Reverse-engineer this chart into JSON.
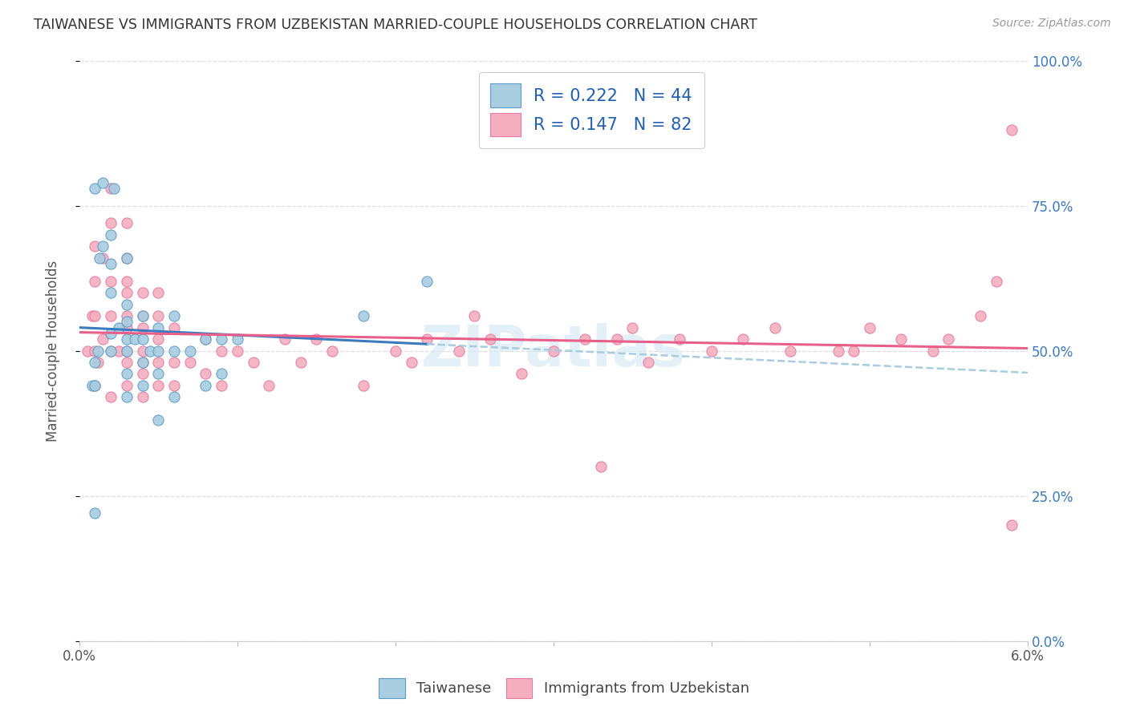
{
  "title": "TAIWANESE VS IMMIGRANTS FROM UZBEKISTAN MARRIED-COUPLE HOUSEHOLDS CORRELATION CHART",
  "source": "Source: ZipAtlas.com",
  "ylabel": "Married-couple Households",
  "x_min": 0.0,
  "x_max": 0.06,
  "y_min": 0.0,
  "y_max": 1.0,
  "x_tick_positions": [
    0.0,
    0.01,
    0.02,
    0.03,
    0.04,
    0.05,
    0.06
  ],
  "x_tick_labels": [
    "0.0%",
    "",
    "",
    "",
    "",
    "",
    "6.0%"
  ],
  "y_tick_positions": [
    0.0,
    0.25,
    0.5,
    0.75,
    1.0
  ],
  "y_tick_labels_right": [
    "0.0%",
    "25.0%",
    "50.0%",
    "75.0%",
    "100.0%"
  ],
  "legend_r1": "0.222",
  "legend_n1": "44",
  "legend_r2": "0.147",
  "legend_n2": "82",
  "color_blue_fill": "#a8cce0",
  "color_blue_edge": "#5a9ec8",
  "color_blue_line": "#3a7abf",
  "color_blue_dash": "#a8cce0",
  "color_pink_fill": "#f4aec0",
  "color_pink_edge": "#e87aa0",
  "color_pink_line": "#e8608a",
  "color_right_axis": "#3a7abf",
  "watermark_color": "#d8eaf5",
  "taiwanese_x": [
    0.0008,
    0.001,
    0.001,
    0.001,
    0.001,
    0.0012,
    0.0013,
    0.0015,
    0.0015,
    0.002,
    0.002,
    0.002,
    0.002,
    0.002,
    0.0022,
    0.0025,
    0.003,
    0.003,
    0.003,
    0.003,
    0.003,
    0.003,
    0.003,
    0.0035,
    0.004,
    0.004,
    0.004,
    0.004,
    0.0045,
    0.005,
    0.005,
    0.005,
    0.005,
    0.006,
    0.006,
    0.006,
    0.007,
    0.008,
    0.008,
    0.009,
    0.009,
    0.01,
    0.018,
    0.022
  ],
  "taiwanese_y": [
    0.44,
    0.22,
    0.44,
    0.48,
    0.78,
    0.5,
    0.66,
    0.79,
    0.68,
    0.5,
    0.53,
    0.6,
    0.65,
    0.7,
    0.78,
    0.54,
    0.42,
    0.46,
    0.5,
    0.52,
    0.55,
    0.58,
    0.66,
    0.52,
    0.44,
    0.48,
    0.52,
    0.56,
    0.5,
    0.38,
    0.46,
    0.5,
    0.54,
    0.42,
    0.5,
    0.56,
    0.5,
    0.44,
    0.52,
    0.46,
    0.52,
    0.52,
    0.56,
    0.62
  ],
  "uzbekistan_x": [
    0.0005,
    0.0008,
    0.001,
    0.001,
    0.001,
    0.001,
    0.001,
    0.0012,
    0.0015,
    0.0015,
    0.002,
    0.002,
    0.002,
    0.002,
    0.002,
    0.002,
    0.0025,
    0.003,
    0.003,
    0.003,
    0.003,
    0.003,
    0.003,
    0.003,
    0.003,
    0.003,
    0.004,
    0.004,
    0.004,
    0.004,
    0.004,
    0.004,
    0.004,
    0.005,
    0.005,
    0.005,
    0.005,
    0.005,
    0.006,
    0.006,
    0.006,
    0.007,
    0.008,
    0.008,
    0.009,
    0.009,
    0.01,
    0.011,
    0.012,
    0.013,
    0.014,
    0.015,
    0.016,
    0.018,
    0.02,
    0.021,
    0.022,
    0.024,
    0.025,
    0.026,
    0.028,
    0.03,
    0.032,
    0.033,
    0.034,
    0.035,
    0.036,
    0.038,
    0.04,
    0.042,
    0.044,
    0.045,
    0.048,
    0.049,
    0.05,
    0.052,
    0.054,
    0.055,
    0.057,
    0.058,
    0.059,
    0.059
  ],
  "uzbekistan_y": [
    0.5,
    0.56,
    0.44,
    0.5,
    0.56,
    0.62,
    0.68,
    0.48,
    0.52,
    0.66,
    0.42,
    0.5,
    0.56,
    0.62,
    0.72,
    0.78,
    0.5,
    0.44,
    0.5,
    0.56,
    0.6,
    0.62,
    0.66,
    0.72,
    0.48,
    0.54,
    0.42,
    0.46,
    0.5,
    0.54,
    0.56,
    0.6,
    0.48,
    0.44,
    0.48,
    0.52,
    0.56,
    0.6,
    0.44,
    0.48,
    0.54,
    0.48,
    0.46,
    0.52,
    0.44,
    0.5,
    0.5,
    0.48,
    0.44,
    0.52,
    0.48,
    0.52,
    0.5,
    0.44,
    0.5,
    0.48,
    0.52,
    0.5,
    0.56,
    0.52,
    0.46,
    0.5,
    0.52,
    0.3,
    0.52,
    0.54,
    0.48,
    0.52,
    0.5,
    0.52,
    0.54,
    0.5,
    0.5,
    0.5,
    0.54,
    0.52,
    0.5,
    0.52,
    0.56,
    0.62,
    0.2,
    0.88
  ]
}
